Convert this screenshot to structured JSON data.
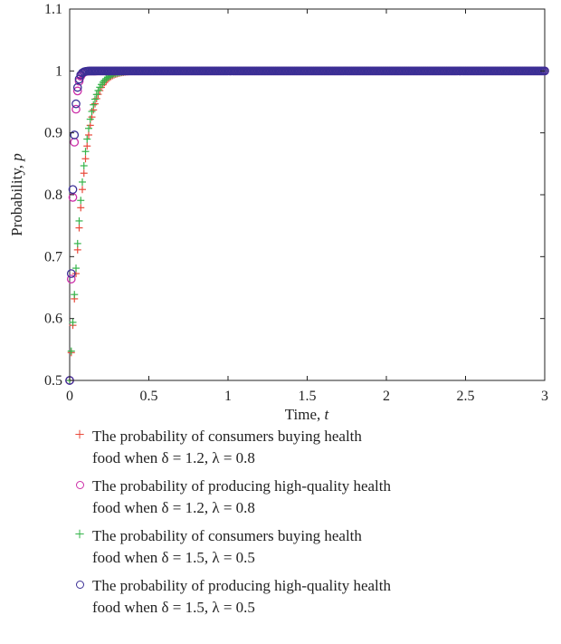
{
  "chart_data": {
    "type": "scatter",
    "xlabel_main": "Time, ",
    "xlabel_var": "t",
    "ylabel_main": "Probability, ",
    "ylabel_var": "p",
    "xlim": [
      0,
      3
    ],
    "ylim": [
      0.5,
      1.1
    ],
    "xticks": [
      "0",
      "0.5",
      "1",
      "1.5",
      "2",
      "2.5",
      "3"
    ],
    "yticks": [
      "0.5",
      "0.6",
      "0.7",
      "0.8",
      "0.9",
      "1",
      "1.1"
    ],
    "xtick_values": [
      0,
      0.5,
      1,
      1.5,
      2,
      2.5,
      3
    ],
    "ytick_values": [
      0.5,
      0.6,
      0.7,
      0.8,
      0.9,
      1.0,
      1.1
    ],
    "grid": false,
    "legend_position": "below",
    "series": [
      {
        "name_line1": "The probability of consumers buying health",
        "name_line2": "food when δ = 1.2, λ = 0.8",
        "marker": "plus",
        "color": "#e8493a",
        "model": {
          "k": 18,
          "p0": 0.5
        }
      },
      {
        "name_line1": "The probability of producing high-quality health",
        "name_line2": "food when δ = 1.2, λ = 0.8",
        "marker": "circle",
        "color": "#cc2ea8",
        "model": {
          "k": 68,
          "p0": 0.5
        }
      },
      {
        "name_line1": "The probability of consumers buying health",
        "name_line2": "food when δ = 1.5, λ = 0.5",
        "marker": "plus",
        "color": "#34b44a",
        "model": {
          "k": 19,
          "p0": 0.5
        }
      },
      {
        "name_line1": "The probability of producing high-quality health",
        "name_line2": "food when δ = 1.5, λ = 0.5",
        "marker": "circle",
        "color": "#3b2f95",
        "model": {
          "k": 72,
          "p0": 0.5
        }
      }
    ],
    "sampling": {
      "t_start": 0,
      "t_end": 3,
      "step": 0.01
    }
  }
}
